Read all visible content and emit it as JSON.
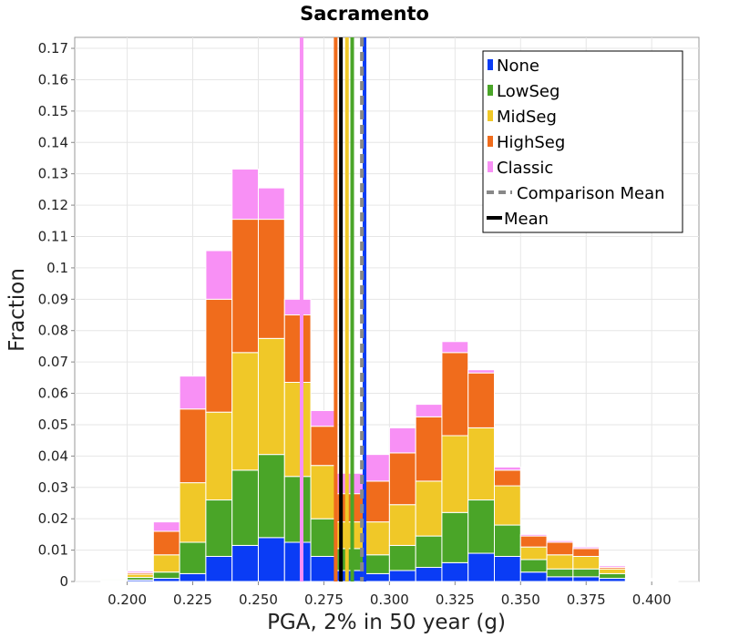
{
  "chart_data": {
    "type": "bar",
    "stacked": true,
    "title": "Sacramento",
    "xlabel": "PGA, 2% in 50 year (g)",
    "ylabel": "Fraction",
    "xlim": [
      0.18,
      0.418
    ],
    "ylim": [
      0,
      0.1735
    ],
    "bin_width": 0.01,
    "x_ticks": [
      "0.200",
      "0.225",
      "0.250",
      "0.275",
      "0.300",
      "0.325",
      "0.350",
      "0.375",
      "0.400"
    ],
    "y_ticks": [
      "0",
      "0.01",
      "0.02",
      "0.03",
      "0.04",
      "0.05",
      "0.06",
      "0.07",
      "0.08",
      "0.09",
      "0.1",
      "0.11",
      "0.12",
      "0.13",
      "0.14",
      "0.15",
      "0.16",
      "0.17"
    ],
    "grid": true,
    "legend_position": "top-right",
    "bin_centers": [
      0.195,
      0.205,
      0.215,
      0.225,
      0.235,
      0.245,
      0.255,
      0.265,
      0.275,
      0.285,
      0.295,
      0.305,
      0.315,
      0.325,
      0.335,
      0.345,
      0.355,
      0.365,
      0.375,
      0.385,
      0.395,
      0.405
    ],
    "series": [
      {
        "name": "None",
        "color": "#0a3cf5",
        "values": [
          0.0002,
          0.0005,
          0.001,
          0.0025,
          0.008,
          0.0115,
          0.014,
          0.0125,
          0.008,
          0.0035,
          0.0025,
          0.0035,
          0.0045,
          0.006,
          0.009,
          0.008,
          0.003,
          0.0015,
          0.0015,
          0.001,
          0.0003,
          0.0001
        ]
      },
      {
        "name": "LowSeg",
        "color": "#4aa528",
        "values": [
          0.0003,
          0.0008,
          0.002,
          0.01,
          0.018,
          0.024,
          0.0265,
          0.021,
          0.012,
          0.007,
          0.006,
          0.008,
          0.01,
          0.016,
          0.017,
          0.01,
          0.004,
          0.0025,
          0.0025,
          0.0015,
          0.0002,
          0.0001
        ]
      },
      {
        "name": "MidSeg",
        "color": "#f0c828",
        "values": [
          0.0003,
          0.001,
          0.0055,
          0.019,
          0.028,
          0.0375,
          0.037,
          0.03,
          0.017,
          0.0085,
          0.0105,
          0.013,
          0.0175,
          0.0245,
          0.023,
          0.0125,
          0.004,
          0.0045,
          0.004,
          0.0015,
          0.0001,
          0.0001
        ]
      },
      {
        "name": "HighSeg",
        "color": "#f06c1c",
        "values": [
          0.0001,
          0.0005,
          0.0075,
          0.0235,
          0.036,
          0.0425,
          0.038,
          0.0215,
          0.0125,
          0.009,
          0.013,
          0.0165,
          0.0205,
          0.0265,
          0.0175,
          0.005,
          0.0035,
          0.004,
          0.0025,
          0.0005,
          0.0002,
          0.0001
        ]
      },
      {
        "name": "Classic",
        "color": "#f890f5",
        "values": [
          0.0001,
          0.0005,
          0.003,
          0.0105,
          0.0155,
          0.016,
          0.01,
          0.005,
          0.005,
          0.0065,
          0.0085,
          0.008,
          0.004,
          0.0035,
          0.001,
          0.001,
          0.0005,
          0.0005,
          0.0005,
          0.0005,
          0.0002,
          0.0001
        ]
      }
    ],
    "vertical_lines": [
      {
        "name": "Classic",
        "x": 0.2665,
        "color": "#f890f5",
        "dashed": false
      },
      {
        "name": "HighSeg",
        "x": 0.2795,
        "color": "#f06c1c",
        "dashed": false
      },
      {
        "name": "Mean",
        "x": 0.2815,
        "color": "#000000",
        "dashed": false
      },
      {
        "name": "MidSeg",
        "x": 0.2838,
        "color": "#f0c828",
        "dashed": false
      },
      {
        "name": "LowSeg",
        "x": 0.2858,
        "color": "#4aa528",
        "dashed": false
      },
      {
        "name": "None",
        "x": 0.2905,
        "color": "#0a3cf5",
        "dashed": false
      },
      {
        "name": "Comparison Mean",
        "x": 0.2895,
        "color": "#888888",
        "dashed": true
      }
    ],
    "legend": [
      {
        "label": "None",
        "color": "#0a3cf5",
        "kind": "box"
      },
      {
        "label": "LowSeg",
        "color": "#4aa528",
        "kind": "box"
      },
      {
        "label": "MidSeg",
        "color": "#f0c828",
        "kind": "box"
      },
      {
        "label": "HighSeg",
        "color": "#f06c1c",
        "kind": "box"
      },
      {
        "label": "Classic",
        "color": "#f890f5",
        "kind": "box"
      },
      {
        "label": "Comparison Mean",
        "color": "#888888",
        "kind": "dash"
      },
      {
        "label": "Mean",
        "color": "#000000",
        "kind": "line"
      }
    ]
  }
}
